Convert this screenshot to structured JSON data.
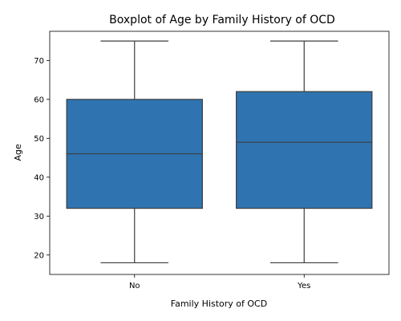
{
  "chart_data": {
    "type": "boxplot",
    "title": "Boxplot of Age by Family History of OCD",
    "xlabel": "Family History of OCD",
    "ylabel": "Age",
    "ylim": [
      15,
      77.5
    ],
    "yticks": [
      20,
      30,
      40,
      50,
      60,
      70
    ],
    "categories": [
      "No",
      "Yes"
    ],
    "boxes": [
      {
        "category": "No",
        "min": 18,
        "q1": 32,
        "median": 46,
        "q3": 60,
        "max": 75
      },
      {
        "category": "Yes",
        "min": 18,
        "q1": 32,
        "median": 49,
        "q3": 62,
        "max": 75
      }
    ],
    "grid": false,
    "colors": {
      "box_fill": "#2f74b1",
      "line": "#3d3d3d",
      "axis": "#000000"
    }
  }
}
